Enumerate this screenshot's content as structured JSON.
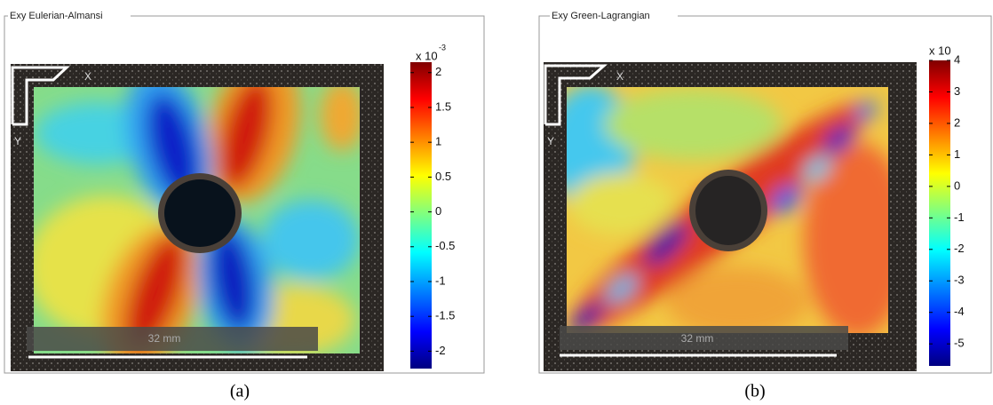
{
  "panels": [
    {
      "title": "Exy Eulerian-Almansi",
      "x_label": "X",
      "y_label": "Y",
      "scale_bar": "32 mm",
      "caption": "(a)",
      "colorbar": {
        "multiplier": "x 10",
        "exponent": "-3",
        "lim": [
          -2.25,
          2.15
        ],
        "ticks": [
          2,
          1.5,
          1,
          0.5,
          0,
          -0.5,
          -1,
          -1.5,
          -2
        ]
      }
    },
    {
      "title": "Exy Green-Lagrangian",
      "x_label": "X",
      "y_label": "Y",
      "scale_bar": "32 mm",
      "caption": "(b)",
      "colorbar": {
        "multiplier": "x 10",
        "lim": [
          -5.7,
          4
        ],
        "ticks": [
          4,
          3,
          2,
          1,
          0,
          -1,
          -2,
          -3,
          -4,
          -5
        ]
      }
    }
  ]
}
